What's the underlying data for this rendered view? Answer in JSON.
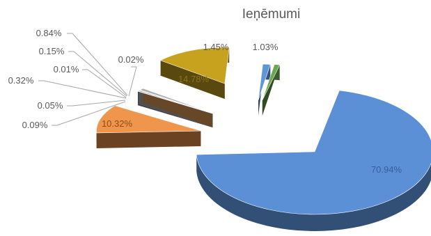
{
  "chart_data": {
    "type": "pie",
    "title": "Ieņēmumi",
    "slices": [
      {
        "label": "70.94%",
        "value": 70.94,
        "color": "#5b8fd6"
      },
      {
        "label": "10.32%",
        "value": 10.32,
        "color": "#f0954c"
      },
      {
        "label": "0.09%",
        "value": 0.09,
        "color": "#9a9a9a"
      },
      {
        "label": "0.05%",
        "value": 0.05,
        "color": "#dcdcdc"
      },
      {
        "label": "0.32%",
        "value": 0.32,
        "color": "#8a8a8a"
      },
      {
        "label": "0.01%",
        "value": 0.01,
        "color": "#c0c0c0"
      },
      {
        "label": "0.15%",
        "value": 0.15,
        "color": "#c8c8c8"
      },
      {
        "label": "0.84%",
        "value": 0.84,
        "color": "#b0b0b0"
      },
      {
        "label": "0.02%",
        "value": 0.02,
        "color": "#e2a05a"
      },
      {
        "label": "14.78%",
        "value": 14.78,
        "color": "#c6a21f"
      },
      {
        "label": "1.45%",
        "value": 1.45,
        "color": "#5f97d6"
      },
      {
        "label": "1.03%",
        "value": 1.03,
        "color": "#6aa84f"
      }
    ],
    "legend": "none",
    "style": "exploded-3d"
  }
}
